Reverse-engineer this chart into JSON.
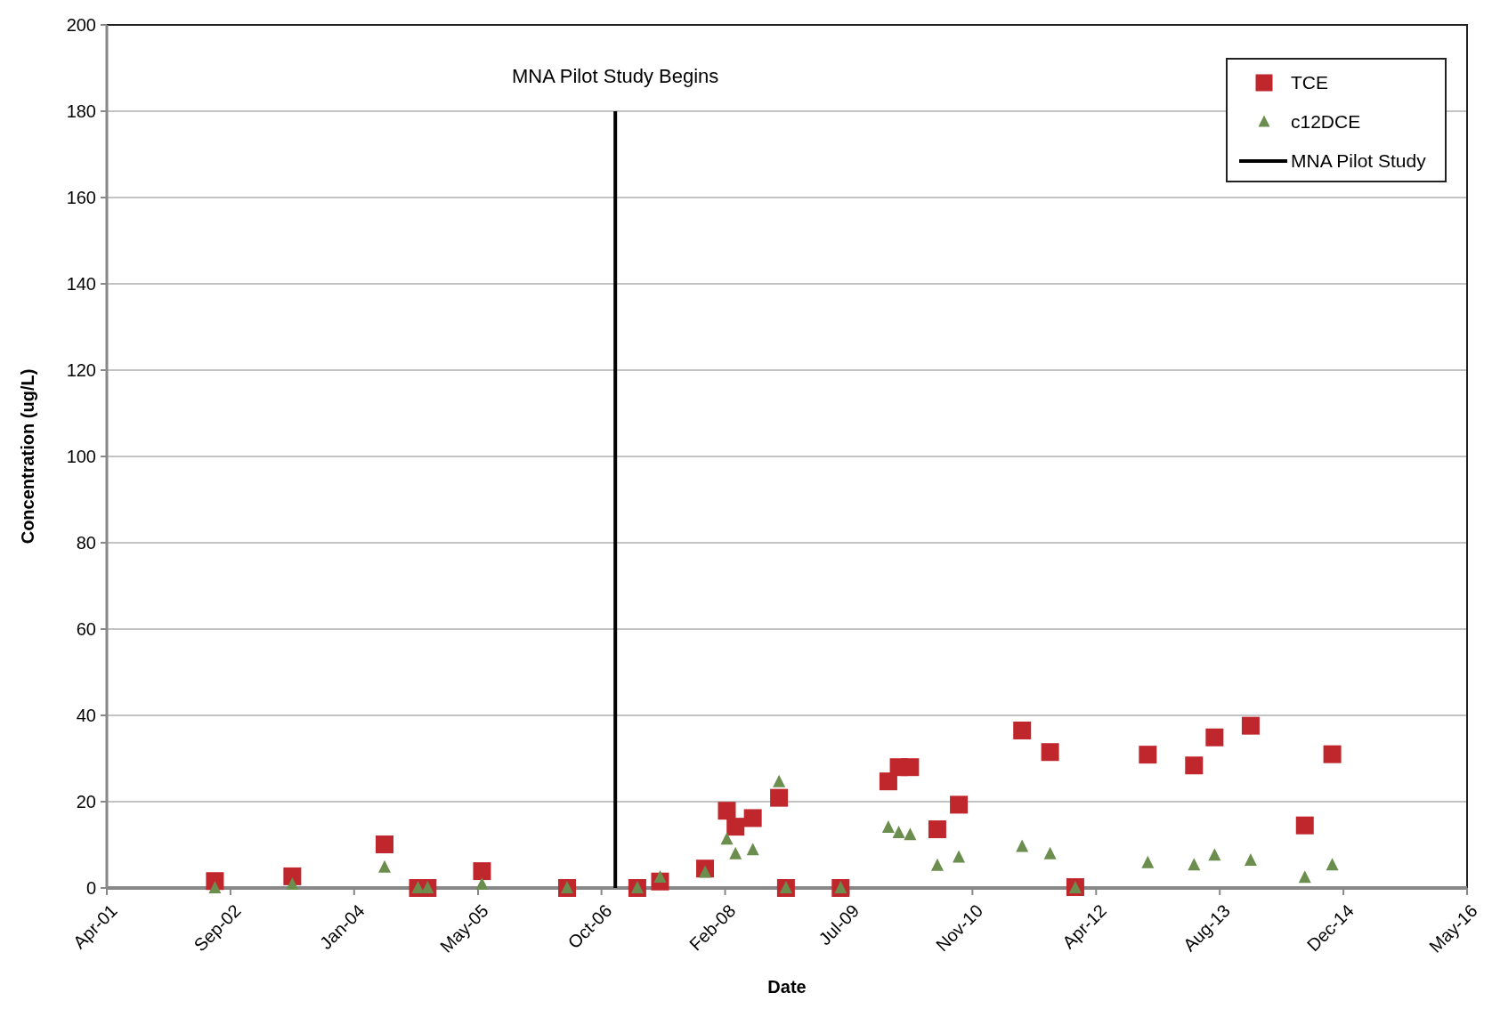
{
  "chart_data": {
    "type": "scatter",
    "xlabel": "Date",
    "ylabel": "Concentration (ug/L)",
    "xlim": [
      "2001-04-19",
      "2016-05-10"
    ],
    "xticks": [
      {
        "value": "2001-04-19",
        "label": "Apr-01"
      },
      {
        "value": "2002-09-01",
        "label": "Sep-02"
      },
      {
        "value": "2004-01-14",
        "label": "Jan-04"
      },
      {
        "value": "2005-05-29",
        "label": "May-05"
      },
      {
        "value": "2006-10-10",
        "label": "Oct-06"
      },
      {
        "value": "2008-02-22",
        "label": "Feb-08"
      },
      {
        "value": "2009-07-06",
        "label": "Jul-09"
      },
      {
        "value": "2010-11-18",
        "label": "Nov-10"
      },
      {
        "value": "2012-04-01",
        "label": "Apr-12"
      },
      {
        "value": "2013-08-14",
        "label": "Aug-13"
      },
      {
        "value": "2014-12-27",
        "label": "Dec-14"
      },
      {
        "value": "2016-05-10",
        "label": "May-16"
      }
    ],
    "ylim": [
      0,
      200
    ],
    "yticks": [
      0,
      20,
      40,
      60,
      80,
      100,
      120,
      140,
      160,
      180,
      200
    ],
    "grid": "y",
    "legend": "top right",
    "x": [
      "2002-06-30",
      "2003-05-09",
      "2004-05-16",
      "2004-09-28",
      "2004-11-06",
      "2005-06-14",
      "2006-05-24",
      "2007-03-04",
      "2007-06-04",
      "2007-12-03",
      "2008-02-29",
      "2008-04-04",
      "2008-06-13",
      "2008-09-27",
      "2008-10-25",
      "2009-06-03",
      "2009-12-13",
      "2010-01-24",
      "2010-03-11",
      "2010-06-29",
      "2010-09-24",
      "2011-06-07",
      "2011-09-28",
      "2012-01-08",
      "2012-10-27",
      "2013-05-02",
      "2013-07-24",
      "2013-12-17",
      "2014-07-24",
      "2014-11-12"
    ],
    "series": [
      {
        "name": "TCE",
        "color": "#c0272d",
        "marker": "square",
        "values": [
          1.6,
          2.7,
          10.1,
          0,
          0,
          3.9,
          0,
          0,
          1.5,
          4.5,
          17.9,
          14.2,
          16.2,
          20.9,
          0,
          0,
          24.7,
          28,
          28,
          13.6,
          19.3,
          36.5,
          31.5,
          0.2,
          30.9,
          28.4,
          34.9,
          37.6,
          14.5,
          31
        ]
      },
      {
        "name": "c12DCE",
        "color": "#6b8e4e",
        "marker": "triangle",
        "values": [
          0,
          0.8,
          4.8,
          0,
          0,
          0.8,
          0,
          0,
          2.5,
          3.6,
          11.3,
          7.9,
          8.8,
          24.6,
          0,
          0,
          14,
          12.8,
          12.3,
          5.2,
          7.1,
          9.6,
          7.9,
          0,
          5.8,
          5.3,
          7.6,
          6.4,
          2.4,
          5.3
        ]
      },
      {
        "name": "MNA Pilot Study",
        "type": "line",
        "color": "#000000",
        "marker": "none",
        "x": [
          "2006-12-05",
          "2006-12-05"
        ],
        "values": [
          0,
          180
        ]
      }
    ],
    "annotations": [
      {
        "text": "MNA Pilot Study Begins",
        "x": "2006-12-05",
        "y": 180
      }
    ]
  }
}
